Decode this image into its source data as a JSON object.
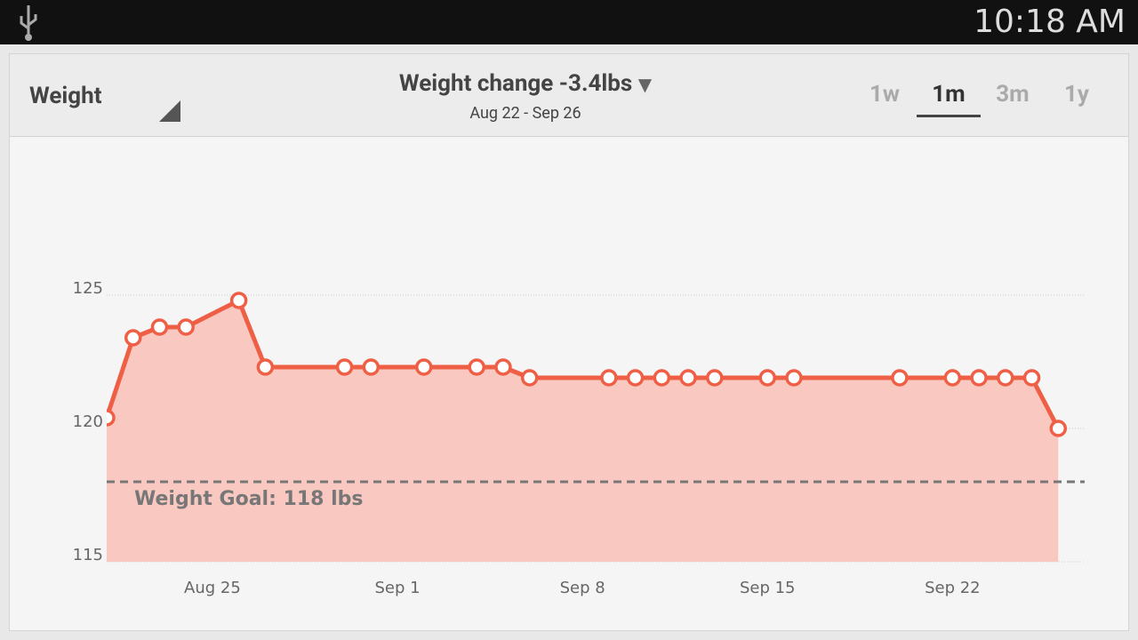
{
  "status_bar": {
    "time": "10:18 AM"
  },
  "header": {
    "metric": "Weight",
    "title": "Weight change -3.4lbs",
    "date_range": "Aug 22 - Sep 26",
    "ranges": [
      "1w",
      "1m",
      "3m",
      "1y"
    ],
    "selected_range": "1m"
  },
  "chart_data": {
    "type": "line",
    "x": [
      "Aug 21",
      "Aug 22",
      "Aug 23",
      "Aug 24",
      "Aug 26",
      "Aug 27",
      "Aug 30",
      "Aug 31",
      "Sep 2",
      "Sep 4",
      "Sep 5",
      "Sep 6",
      "Sep 9",
      "Sep 10",
      "Sep 11",
      "Sep 12",
      "Sep 13",
      "Sep 15",
      "Sep 16",
      "Sep 20",
      "Sep 22",
      "Sep 23",
      "Sep 24",
      "Sep 25",
      "Sep 26"
    ],
    "values": [
      120.4,
      123.4,
      123.8,
      123.8,
      124.8,
      122.3,
      122.3,
      122.3,
      122.3,
      122.3,
      122.3,
      121.9,
      121.9,
      121.9,
      121.9,
      121.9,
      121.9,
      121.9,
      121.9,
      121.9,
      121.9,
      121.9,
      121.9,
      121.9,
      120.0
    ],
    "color": "#ef5f45",
    "fill": "#f9c9c1",
    "xlim": [
      "Aug 21",
      "Sep 27"
    ],
    "xticks": [
      "Aug 25",
      "Sep 1",
      "Sep 8",
      "Sep 15",
      "Sep 22"
    ],
    "ylim": [
      115,
      130
    ],
    "yticks": [
      115,
      120,
      125
    ],
    "goal": 118,
    "goal_label": "Weight Goal: 118 lbs"
  }
}
